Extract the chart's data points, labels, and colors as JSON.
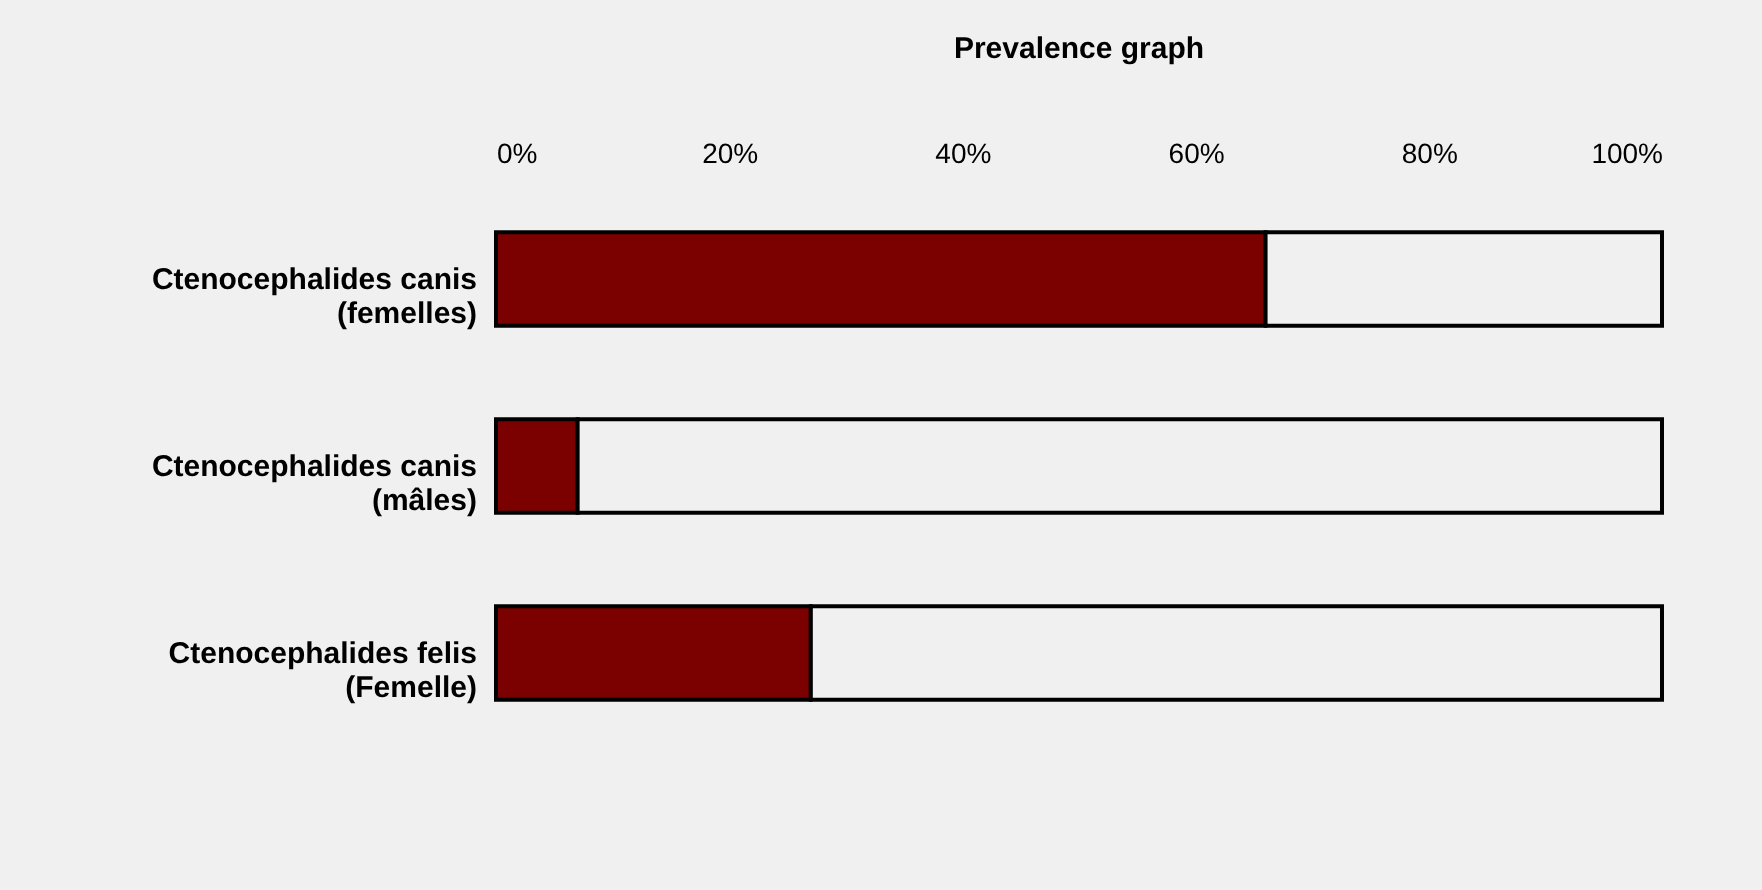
{
  "chart_data": {
    "type": "bar",
    "title": "Prevalence graph",
    "orientation": "horizontal",
    "stacked": true,
    "categories": [
      "Ctenocephalides canis\n(femelles)",
      "Ctenocephalides canis\n(mâles)",
      "Ctenocephalides felis\n(Femelle)"
    ],
    "series": [
      {
        "color": "#7b0000",
        "values": [
          66,
          7,
          27
        ]
      },
      {
        "color": "#f0f0f0",
        "values": [
          34,
          93,
          73
        ]
      }
    ],
    "xlim": [
      0,
      100
    ],
    "xticks": [
      {
        "value": 0,
        "label": "0%"
      },
      {
        "value": 20,
        "label": "20%"
      },
      {
        "value": 40,
        "label": "40%"
      },
      {
        "value": 60,
        "label": "60%"
      },
      {
        "value": 80,
        "label": "80%"
      },
      {
        "value": 100,
        "label": "100%"
      }
    ],
    "grid": false,
    "legend": false
  }
}
